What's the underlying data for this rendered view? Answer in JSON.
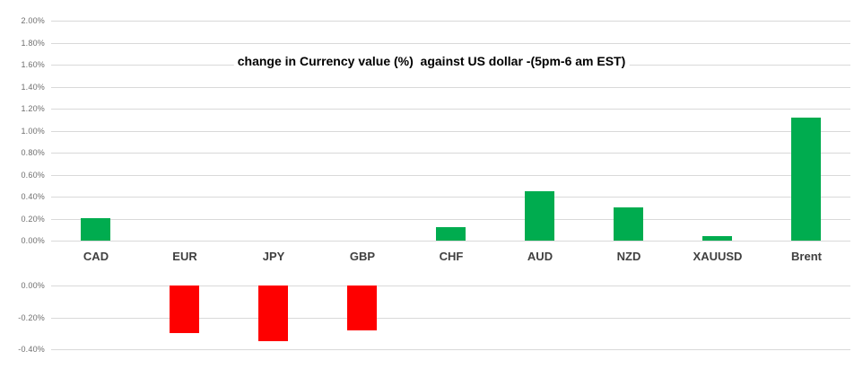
{
  "chart_data": {
    "type": "bar",
    "title": "change in Currency value (%)  against US dollar -(5pm-6 am EST)",
    "categories": [
      "CAD",
      "EUR",
      "JPY",
      "GBP",
      "CHF",
      "AUD",
      "NZD",
      "XAUUSD",
      "Brent"
    ],
    "values": [
      0.2,
      -0.3,
      -0.35,
      -0.28,
      0.12,
      0.45,
      0.3,
      0.04,
      1.12
    ],
    "unit": "percent",
    "xlabel": "",
    "ylabel": "",
    "grid": true,
    "legend": false,
    "layout_note": "split axis: positive values plotted in upper panel (0% to 2%), negative values in lower panel (0% to -0.40%), category labels between panels",
    "y_axis_upper": {
      "range": [
        0.0,
        2.0
      ],
      "tick_step": 0.2,
      "tick_values": [
        2.0,
        1.8,
        1.6,
        1.4,
        1.2,
        1.0,
        0.8,
        0.6,
        0.4,
        0.2,
        0.0
      ],
      "tick_labels": [
        "2.00%",
        "1.80%",
        "1.60%",
        "1.40%",
        "1.20%",
        "1.00%",
        "0.80%",
        "0.60%",
        "0.40%",
        "0.20%",
        "0.00%"
      ]
    },
    "y_axis_lower": {
      "range": [
        -0.4,
        0.0
      ],
      "tick_step": 0.2,
      "tick_values": [
        0.0,
        -0.2,
        -0.4
      ],
      "tick_labels": [
        "0.00%",
        "-0.20%",
        "-0.40%"
      ]
    }
  },
  "colors": {
    "positive_bar": "#00ac4f",
    "negative_bar": "#fe0000",
    "gridline": "#d9d9d9",
    "tick_label": "#6e6e6e",
    "category_label": "#404040",
    "title": "#000000",
    "background": "#ffffff"
  }
}
